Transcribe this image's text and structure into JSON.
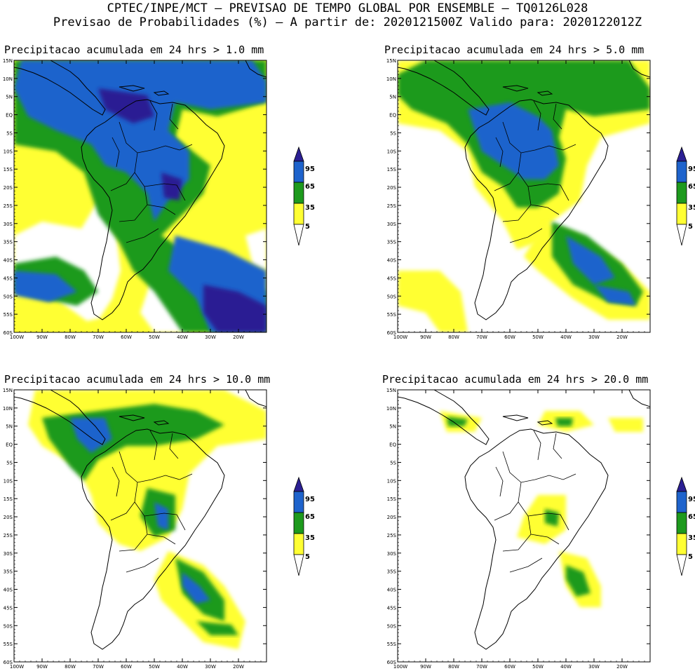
{
  "header": {
    "line1": "CPTEC/INPE/MCT – PREVISAO DE TEMPO GLOBAL POR ENSEMBLE – TQ0126L028",
    "line2": "Previsao de Probabilidades (%) –  A partir de: 2020121500Z  Valido para: 2020122012Z"
  },
  "panels": [
    {
      "id": "p1",
      "title": "Precipitacao acumulada em 24 hrs > 1.0 mm"
    },
    {
      "id": "p2",
      "title": "Precipitacao acumulada em 24 hrs > 5.0 mm"
    },
    {
      "id": "p3",
      "title": "Precipitacao acumulada em 24 hrs > 10.0 mm"
    },
    {
      "id": "p4",
      "title": "Precipitacao acumulada em 24 hrs > 20.0 mm"
    }
  ],
  "axes": {
    "lat_labels": [
      "15N",
      "10N",
      "5N",
      "EQ",
      "5S",
      "10S",
      "15S",
      "20S",
      "25S",
      "30S",
      "35S",
      "40S",
      "45S",
      "50S",
      "55S",
      "60S"
    ],
    "lon_labels": [
      "100W",
      "90W",
      "80W",
      "70W",
      "60W",
      "50W",
      "40W",
      "30W",
      "20W"
    ]
  },
  "legend": {
    "levels": [
      "95",
      "65",
      "35",
      "5"
    ],
    "colors": {
      "c95": "#2b1f93",
      "c65": "#1e63cc",
      "c35": "#1d9a1d",
      "c5": "#ffff33"
    }
  }
}
